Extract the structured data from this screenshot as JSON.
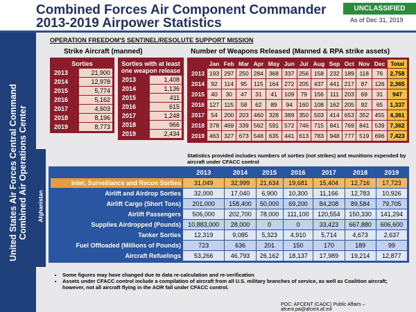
{
  "header": {
    "title_line1": "Combined Forces Air Component Commander",
    "title_line2": "2013-2019 Airpower Statistics",
    "classification": "UNCLASSIFIED",
    "as_of": "As of Dec 31, 2019"
  },
  "sidebar": {
    "line1": "United States Air Forces Central Command",
    "line2": "Combined Air Operations Center"
  },
  "region": "Afghanistan",
  "section_title": "OPERATION FREEDOM'S SENTINEL/RESOLUTE SUPPORT MISSION",
  "strike": {
    "label": "Strike Aircraft (manned)",
    "sorties": {
      "header": "Sorties",
      "rows": [
        [
          "2013",
          "21,900"
        ],
        [
          "2014",
          "12,978"
        ],
        [
          "2015",
          "5,774"
        ],
        [
          "2016",
          "5,162"
        ],
        [
          "2017",
          "4,603"
        ],
        [
          "2018",
          "8,196"
        ],
        [
          "2019",
          "8,773"
        ]
      ]
    },
    "weapon_sorties": {
      "header": "Sorties with at least one weapon release",
      "rows": [
        [
          "2013",
          "1,408"
        ],
        [
          "2014",
          "1,136"
        ],
        [
          "2015",
          "411"
        ],
        [
          "2016",
          "615"
        ],
        [
          "2017",
          "1,248"
        ],
        [
          "2018",
          "966"
        ],
        [
          "2019",
          "2,434"
        ]
      ]
    }
  },
  "weapons": {
    "label": "Number of Weapons Released (Manned & RPA strike assets)",
    "columns": [
      "Jan",
      "Feb",
      "Mar",
      "Apr",
      "May",
      "Jun",
      "Jul",
      "Aug",
      "Sep",
      "Oct",
      "Nov",
      "Dec",
      "Total"
    ],
    "rows": [
      [
        "2013",
        "193",
        "297",
        "250",
        "284",
        "368",
        "337",
        "256",
        "158",
        "232",
        "189",
        "118",
        "76",
        "2,758"
      ],
      [
        "2014",
        "92",
        "114",
        "95",
        "115",
        "164",
        "272",
        "205",
        "437",
        "441",
        "217",
        "87",
        "126",
        "2,365"
      ],
      [
        "2015",
        "40",
        "30",
        "47",
        "31",
        "41",
        "109",
        "79",
        "156",
        "111",
        "203",
        "69",
        "31",
        "947"
      ],
      [
        "2016",
        "127",
        "115",
        "58",
        "62",
        "89",
        "94",
        "160",
        "108",
        "162",
        "205",
        "92",
        "65",
        "1,337"
      ],
      [
        "2017",
        "54",
        "200",
        "203",
        "460",
        "328",
        "389",
        "350",
        "503",
        "414",
        "653",
        "352",
        "455",
        "4,361"
      ],
      [
        "2018",
        "378",
        "469",
        "339",
        "562",
        "591",
        "572",
        "746",
        "715",
        "841",
        "769",
        "841",
        "539",
        "7,362"
      ],
      [
        "2019",
        "463",
        "327",
        "673",
        "548",
        "635",
        "441",
        "613",
        "783",
        "948",
        "777",
        "519",
        "696",
        "7,423"
      ]
    ]
  },
  "stats_note": "Statistics provided includes numbers of sorties (not strikes) and munitions expended by aircraft under CFACC control",
  "airpower": {
    "columns": [
      "2013",
      "2014",
      "2015",
      "2016",
      "2017",
      "2018",
      "2019"
    ],
    "rows": [
      {
        "label": "Intel, Surveillance and Recon Sorties",
        "values": [
          "31,049",
          "32,999",
          "21,634",
          "19,681",
          "15,404",
          "12,716",
          "17,723"
        ]
      },
      {
        "label": "Airlift and Airdrop Sorties",
        "values": [
          "32,000",
          "17,040",
          "6,900",
          "10,300",
          "11,166",
          "12,783",
          "10,926"
        ]
      },
      {
        "label": "Airlift Cargo (Short Tons)",
        "values": [
          "201,000",
          "158,400",
          "50,000",
          "69,200",
          "84,208",
          "89,584",
          "79,705"
        ]
      },
      {
        "label": "Airlift Passengers",
        "values": [
          "506,000",
          "202,700",
          "78,000",
          "111,100",
          "120,554",
          "150,330",
          "141,294"
        ]
      },
      {
        "label": "Supplies Airdropped (Pounds)",
        "values": [
          "10,883,000",
          "28,000",
          "0",
          "0",
          "33,423",
          "667,880",
          "606,600"
        ]
      },
      {
        "label": "Tanker Sorties",
        "values": [
          "12,319",
          "9,085",
          "5,323",
          "4,910",
          "5,714",
          "4,673",
          "2,637"
        ]
      },
      {
        "label": "Fuel Offloaded (Millions of Pounds)",
        "values": [
          "723",
          "636",
          "201",
          "150",
          "170",
          "189",
          "99"
        ]
      },
      {
        "label": "Aircraft Refuelings",
        "values": [
          "53,266",
          "46,793",
          "26,162",
          "18,137",
          "17,989",
          "19,214",
          "12,877"
        ]
      }
    ]
  },
  "notes": [
    "Some figures may have changed due to data re-calculation and re-verification",
    "Assets under CFACC control include a compilation of aircraft from all U.S. military branches of service, as well as Coalition aircraft; however, not all aircraft flying in the AOR fall under CFACC control."
  ],
  "footer": "POC: AFCENT (CAOC) Public Affairs – afcent.pa@afcent.af.mil"
}
